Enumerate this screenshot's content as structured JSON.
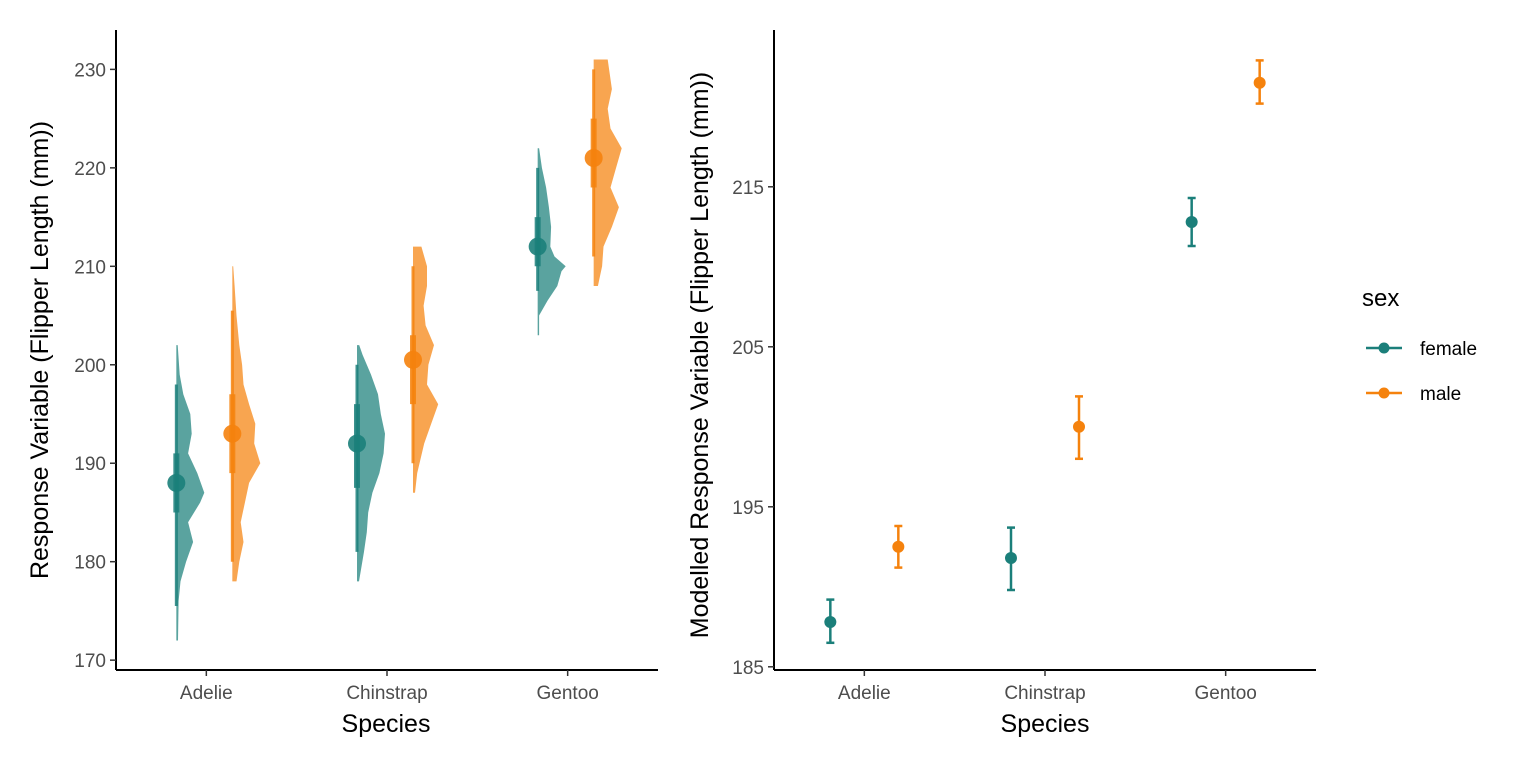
{
  "colors": {
    "female": "#1b7f7a",
    "male": "#f5820d"
  },
  "legend": {
    "title": "sex",
    "items": [
      {
        "key": "female",
        "label": "female"
      },
      {
        "key": "male",
        "label": "male"
      }
    ]
  },
  "chart_data": [
    {
      "type": "violin",
      "categories": [
        "Adelie",
        "Chinstrap",
        "Gentoo"
      ],
      "xlabel": "Species",
      "ylabel": "Response Variable (Flipper Length (mm))",
      "ylim": [
        169,
        234
      ],
      "yticks": [
        170,
        180,
        190,
        200,
        210,
        220,
        230
      ],
      "grid": false,
      "series": [
        {
          "name": "female",
          "groups": [
            {
              "category": "Adelie",
              "median": 188,
              "q1": 185,
              "q3": 191,
              "lo": 175.5,
              "hi": 198,
              "min": 172,
              "max": 202,
              "density": [
                [
                  172,
                  0.06
                ],
                [
                  176,
                  0.08
                ],
                [
                  178,
                  0.15
                ],
                [
                  180,
                  0.35
                ],
                [
                  182,
                  0.6
                ],
                [
                  184,
                  0.42
                ],
                [
                  186,
                  0.85
                ],
                [
                  187,
                  1.0
                ],
                [
                  189,
                  0.75
                ],
                [
                  191,
                  0.42
                ],
                [
                  193,
                  0.55
                ],
                [
                  195,
                  0.5
                ],
                [
                  197,
                  0.25
                ],
                [
                  199,
                  0.12
                ],
                [
                  202,
                  0.05
                ]
              ]
            },
            {
              "category": "Chinstrap",
              "median": 192,
              "q1": 187.5,
              "q3": 196,
              "lo": 181,
              "hi": 200,
              "min": 178,
              "max": 202,
              "density": [
                [
                  178,
                  0.07
                ],
                [
                  181,
                  0.25
                ],
                [
                  183,
                  0.35
                ],
                [
                  185,
                  0.4
                ],
                [
                  187,
                  0.55
                ],
                [
                  189,
                  0.8
                ],
                [
                  191,
                  0.95
                ],
                [
                  193,
                  1.0
                ],
                [
                  195,
                  0.85
                ],
                [
                  197,
                  0.75
                ],
                [
                  199,
                  0.5
                ],
                [
                  201,
                  0.2
                ],
                [
                  202,
                  0.08
                ]
              ]
            },
            {
              "category": "Gentoo",
              "median": 212,
              "q1": 210,
              "q3": 215,
              "lo": 207.5,
              "hi": 220,
              "min": 203,
              "max": 222,
              "density": [
                [
                  203,
                  0.05
                ],
                [
                  205,
                  0.05
                ],
                [
                  206.5,
                  0.35
                ],
                [
                  208,
                  0.7
                ],
                [
                  209.5,
                  0.85
                ],
                [
                  210,
                  1.0
                ],
                [
                  211,
                  0.6
                ],
                [
                  212,
                  0.45
                ],
                [
                  214,
                  0.48
                ],
                [
                  216,
                  0.4
                ],
                [
                  218,
                  0.3
                ],
                [
                  220,
                  0.15
                ],
                [
                  222,
                  0.05
                ]
              ]
            }
          ]
        },
        {
          "name": "male",
          "groups": [
            {
              "category": "Adelie",
              "median": 193,
              "q1": 189,
              "q3": 197,
              "lo": 180,
              "hi": 205.5,
              "min": 178,
              "max": 210,
              "density": [
                [
                  178,
                  0.15
                ],
                [
                  180,
                  0.25
                ],
                [
                  182,
                  0.4
                ],
                [
                  184,
                  0.3
                ],
                [
                  186,
                  0.45
                ],
                [
                  188,
                  0.6
                ],
                [
                  190,
                  1.0
                ],
                [
                  192,
                  0.78
                ],
                [
                  194,
                  0.82
                ],
                [
                  196,
                  0.6
                ],
                [
                  198,
                  0.4
                ],
                [
                  200,
                  0.35
                ],
                [
                  202,
                  0.25
                ],
                [
                  205,
                  0.15
                ],
                [
                  208,
                  0.08
                ],
                [
                  210,
                  0.03
                ]
              ]
            },
            {
              "category": "Chinstrap",
              "median": 200.5,
              "q1": 196,
              "q3": 203,
              "lo": 190,
              "hi": 210,
              "min": 187,
              "max": 212,
              "density": [
                [
                  187,
                  0.07
                ],
                [
                  189,
                  0.15
                ],
                [
                  192,
                  0.4
                ],
                [
                  194,
                  0.65
                ],
                [
                  196,
                  0.9
                ],
                [
                  198,
                  0.5
                ],
                [
                  200,
                  0.55
                ],
                [
                  202,
                  0.75
                ],
                [
                  204,
                  0.45
                ],
                [
                  206,
                  0.38
                ],
                [
                  208,
                  0.5
                ],
                [
                  210,
                  0.5
                ],
                [
                  212,
                  0.3
                ]
              ]
            },
            {
              "category": "Gentoo",
              "median": 221,
              "q1": 218,
              "q3": 225,
              "lo": 211,
              "hi": 230,
              "min": 208,
              "max": 231,
              "density": [
                [
                  208,
                  0.15
                ],
                [
                  210,
                  0.3
                ],
                [
                  212,
                  0.35
                ],
                [
                  214,
                  0.65
                ],
                [
                  216,
                  0.9
                ],
                [
                  218,
                  0.6
                ],
                [
                  220,
                  0.8
                ],
                [
                  222,
                  1.0
                ],
                [
                  224,
                  0.6
                ],
                [
                  226,
                  0.5
                ],
                [
                  228,
                  0.65
                ],
                [
                  230,
                  0.55
                ],
                [
                  231,
                  0.5
                ]
              ]
            }
          ]
        }
      ]
    },
    {
      "type": "errorbar",
      "categories": [
        "Adelie",
        "Chinstrap",
        "Gentoo"
      ],
      "xlabel": "Species",
      "ylabel": "Modelled Response Variable (Flipper Length (mm))",
      "ylim": [
        184.8,
        224.8
      ],
      "yticks": [
        185,
        195,
        205,
        215
      ],
      "grid": false,
      "series": [
        {
          "name": "female",
          "values": [
            187.8,
            191.8,
            212.8
          ],
          "lower": [
            186.5,
            189.8,
            211.3
          ],
          "upper": [
            189.2,
            193.7,
            214.3
          ]
        },
        {
          "name": "male",
          "values": [
            192.5,
            200,
            221.5
          ],
          "lower": [
            191.2,
            198,
            220.2
          ],
          "upper": [
            193.8,
            201.9,
            222.9
          ]
        }
      ]
    }
  ]
}
